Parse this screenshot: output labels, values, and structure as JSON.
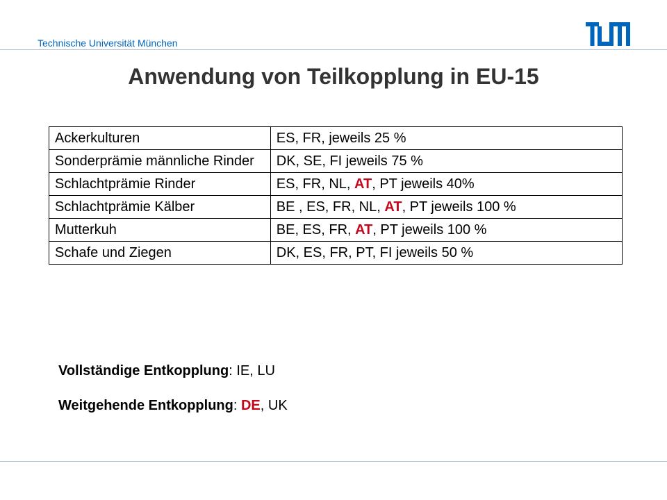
{
  "header": {
    "organization": "Technische Universität München",
    "logo_icon": "tum-logo-icon",
    "logo_color": "#0065bd"
  },
  "title": "Anwendung von Teilkopplung in EU-15",
  "table": {
    "rows": [
      {
        "measure": "Ackerkulturen",
        "countries_pre": "ES, FR, jeweils 25 %",
        "highlight": "",
        "countries_post": ""
      },
      {
        "measure": "Sonderprämie männliche Rinder",
        "countries_pre": "DK, SE, FI jeweils 75 %",
        "highlight": "",
        "countries_post": ""
      },
      {
        "measure": "Schlachtprämie Rinder",
        "countries_pre": "ES, FR, NL, ",
        "highlight": "AT",
        "countries_post": ", PT jeweils 40%"
      },
      {
        "measure": "Schlachtprämie Kälber",
        "countries_pre": "BE , ES, FR, NL, ",
        "highlight": "AT",
        "countries_post": ", PT jeweils 100 %"
      },
      {
        "measure": "Mutterkuh",
        "countries_pre": "BE, ES, FR, ",
        "highlight": "AT",
        "countries_post": ", PT jeweils 100 %"
      },
      {
        "measure": "Schafe und Ziegen",
        "countries_pre": "DK, ES, FR, PT, FI jeweils 50 %",
        "highlight": "",
        "countries_post": ""
      }
    ]
  },
  "summary": {
    "full": {
      "label": "Vollständige Entkopplung",
      "separator": ": ",
      "highlight": "",
      "value": "IE, LU"
    },
    "partial": {
      "label": "Weitgehende Entkopplung",
      "separator": ": ",
      "highlight": "DE",
      "value": ", UK"
    }
  },
  "colors": {
    "accent_blue": "#0065bd",
    "highlight_red": "#c4071b",
    "title_gray": "#333333"
  }
}
